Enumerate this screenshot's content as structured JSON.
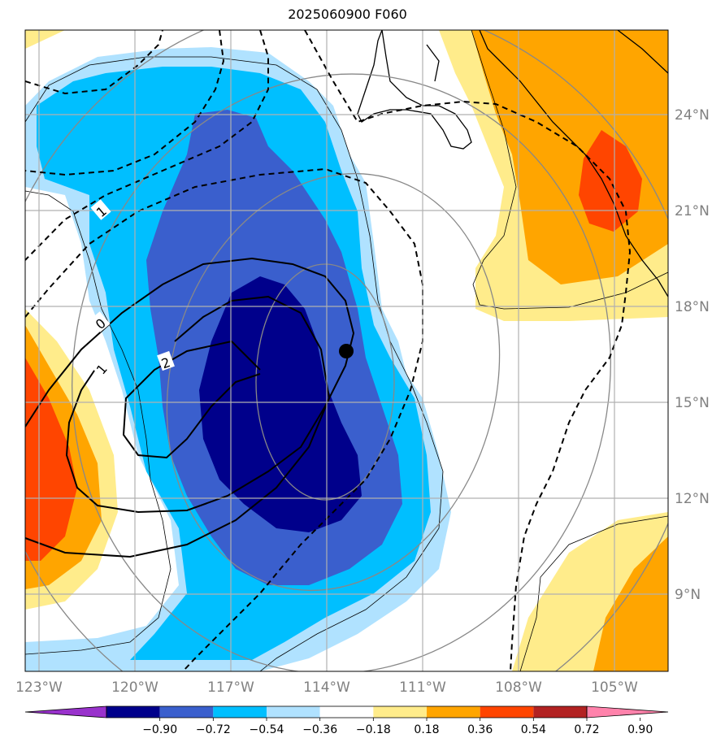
{
  "title": "2025060900 F060",
  "lon_ticks": [
    "123°W",
    "120°W",
    "117°W",
    "114°W",
    "111°W",
    "108°W",
    "105°W"
  ],
  "lat_ticks": [
    "24°N",
    "21°N",
    "18°N",
    "15°N",
    "12°N",
    "9°N"
  ],
  "colorbar": {
    "labels": [
      "−0.90",
      "−0.72",
      "−0.54",
      "−0.36",
      "−0.18",
      "0.18",
      "0.36",
      "0.54",
      "0.72",
      "0.90"
    ],
    "colors": [
      "#9932cc",
      "#00008b",
      "#3a5fcd",
      "#00bfff",
      "#b0e2ff",
      "#ffffff",
      "#ffec8b",
      "#ffa500",
      "#ff4500",
      "#b22222",
      "#ff82ab"
    ],
    "extend": "both"
  },
  "contour_labels": [
    "1",
    "0",
    "1",
    "2"
  ],
  "marker": {
    "name": "storm-center",
    "lon": "113.3°W",
    "lat": "16.6°N"
  },
  "fill_colors": {
    "light_blue": "#b0e2ff",
    "sky_blue": "#00bfff",
    "royal_blue": "#3a5fcd",
    "navy": "#00008b",
    "light_yellow": "#ffec8b",
    "orange": "#ffa500",
    "red_orange": "#ff4500"
  }
}
